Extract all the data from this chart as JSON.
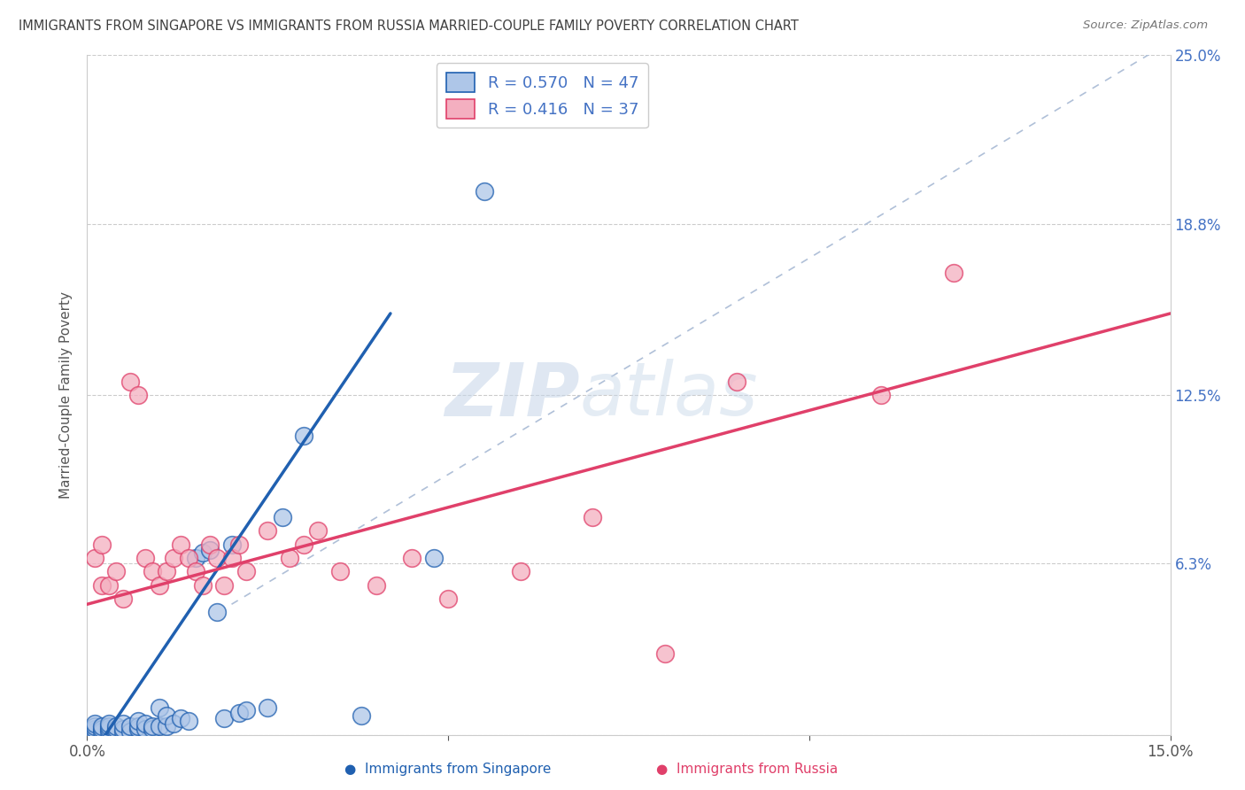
{
  "title": "IMMIGRANTS FROM SINGAPORE VS IMMIGRANTS FROM RUSSIA MARRIED-COUPLE FAMILY POVERTY CORRELATION CHART",
  "source": "Source: ZipAtlas.com",
  "ylabel": "Married-Couple Family Poverty",
  "xlim": [
    0.0,
    0.15
  ],
  "ylim": [
    0.0,
    0.25
  ],
  "singapore_R": 0.57,
  "singapore_N": 47,
  "russia_R": 0.416,
  "russia_N": 37,
  "singapore_color": "#aec6e8",
  "russia_color": "#f4afc0",
  "singapore_line_color": "#2060b0",
  "russia_line_color": "#e0406a",
  "diagonal_color": "#b0c0d8",
  "watermark_zip": "ZIP",
  "watermark_atlas": "atlas",
  "background_color": "#ffffff",
  "grid_color": "#cccccc",
  "title_color": "#404040",
  "right_tick_color": "#4472c4",
  "tick_color": "#555555",
  "source_color": "#777777",
  "sg_x": [
    0.001,
    0.001,
    0.001,
    0.001,
    0.002,
    0.002,
    0.002,
    0.003,
    0.003,
    0.003,
    0.003,
    0.004,
    0.004,
    0.004,
    0.005,
    0.005,
    0.005,
    0.006,
    0.006,
    0.007,
    0.007,
    0.007,
    0.008,
    0.008,
    0.009,
    0.009,
    0.01,
    0.01,
    0.011,
    0.011,
    0.012,
    0.013,
    0.014,
    0.015,
    0.016,
    0.017,
    0.018,
    0.019,
    0.02,
    0.021,
    0.022,
    0.025,
    0.027,
    0.03,
    0.038,
    0.048,
    0.055
  ],
  "sg_y": [
    0.001,
    0.002,
    0.003,
    0.004,
    0.001,
    0.002,
    0.003,
    0.001,
    0.002,
    0.003,
    0.004,
    0.001,
    0.002,
    0.003,
    0.001,
    0.002,
    0.004,
    0.001,
    0.003,
    0.002,
    0.003,
    0.005,
    0.002,
    0.004,
    0.002,
    0.003,
    0.003,
    0.01,
    0.003,
    0.007,
    0.004,
    0.006,
    0.005,
    0.065,
    0.067,
    0.068,
    0.045,
    0.006,
    0.07,
    0.008,
    0.009,
    0.01,
    0.08,
    0.11,
    0.007,
    0.065,
    0.2
  ],
  "ru_x": [
    0.001,
    0.002,
    0.002,
    0.003,
    0.004,
    0.005,
    0.006,
    0.007,
    0.008,
    0.009,
    0.01,
    0.011,
    0.012,
    0.013,
    0.014,
    0.015,
    0.016,
    0.017,
    0.018,
    0.019,
    0.02,
    0.021,
    0.022,
    0.025,
    0.028,
    0.03,
    0.032,
    0.035,
    0.04,
    0.045,
    0.05,
    0.06,
    0.07,
    0.08,
    0.09,
    0.11,
    0.12
  ],
  "ru_y": [
    0.065,
    0.055,
    0.07,
    0.055,
    0.06,
    0.05,
    0.13,
    0.125,
    0.065,
    0.06,
    0.055,
    0.06,
    0.065,
    0.07,
    0.065,
    0.06,
    0.055,
    0.07,
    0.065,
    0.055,
    0.065,
    0.07,
    0.06,
    0.075,
    0.065,
    0.07,
    0.075,
    0.06,
    0.055,
    0.065,
    0.05,
    0.06,
    0.08,
    0.03,
    0.13,
    0.125,
    0.17
  ],
  "sg_line": [
    [
      0.001,
      0.0
    ],
    [
      0.038,
      0.155
    ]
  ],
  "ru_line": [
    [
      0.0,
      0.048
    ],
    [
      0.15,
      0.155
    ]
  ]
}
